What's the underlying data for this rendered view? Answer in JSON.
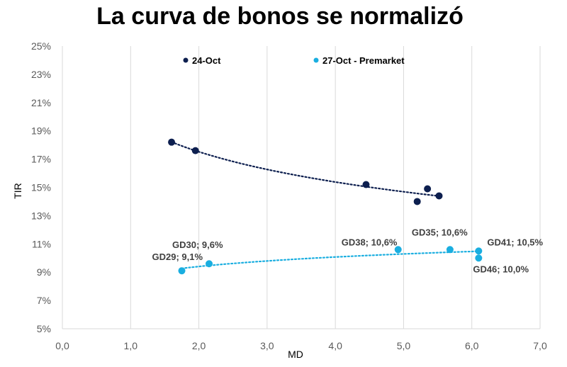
{
  "chart_data": {
    "type": "scatter",
    "title": "La curva de bonos se normalizó",
    "xlabel": "MD",
    "ylabel": "TIR",
    "xlim": [
      0,
      7
    ],
    "ylim": [
      5,
      25
    ],
    "x_ticks": [
      "0,0",
      "1,0",
      "2,0",
      "3,0",
      "4,0",
      "5,0",
      "6,0",
      "7,0"
    ],
    "y_ticks": [
      "5%",
      "7%",
      "9%",
      "11%",
      "13%",
      "15%",
      "17%",
      "19%",
      "21%",
      "23%",
      "25%"
    ],
    "grid": "vertical-only",
    "legend_position": "top",
    "series": [
      {
        "name": "24-Oct",
        "color": "#0d1f4f",
        "trendline": "dotted",
        "points": [
          {
            "x": 1.6,
            "y": 18.2
          },
          {
            "x": 1.95,
            "y": 17.6
          },
          {
            "x": 4.45,
            "y": 15.2
          },
          {
            "x": 5.2,
            "y": 14.0
          },
          {
            "x": 5.35,
            "y": 14.9
          },
          {
            "x": 5.52,
            "y": 14.4
          }
        ]
      },
      {
        "name": "27-Oct - Premarket",
        "color": "#1aaee0",
        "trendline": "dotted",
        "points": [
          {
            "x": 1.75,
            "y": 9.1,
            "label": "GD29; 9,1%"
          },
          {
            "x": 2.15,
            "y": 9.6,
            "label": "GD30; 9,6%"
          },
          {
            "x": 4.92,
            "y": 10.6,
            "label": "GD38; 10,6%"
          },
          {
            "x": 5.68,
            "y": 10.6,
            "label": "GD35; 10,6%"
          },
          {
            "x": 6.1,
            "y": 10.5,
            "label": "GD41; 10,5%"
          },
          {
            "x": 6.1,
            "y": 10.0,
            "label": "GD46; 10,0%"
          }
        ]
      }
    ]
  }
}
